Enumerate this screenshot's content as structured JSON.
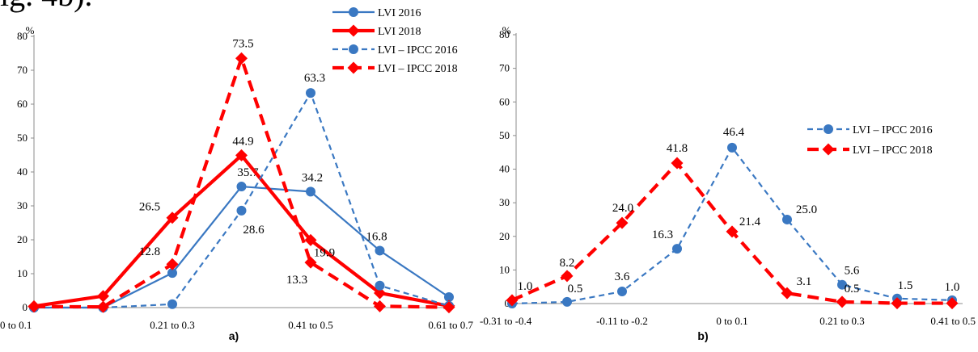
{
  "page": {
    "top_text": "ig. 4b)."
  },
  "chart_data": [
    {
      "type": "line",
      "panel_label": "a)",
      "ylabel": "%",
      "ylim": [
        0,
        80
      ],
      "yticks": [
        0,
        10,
        20,
        30,
        40,
        50,
        60,
        70,
        80
      ],
      "x_labels": [
        "0 to 0.1",
        "",
        "0.21 to 0.3",
        "",
        "0.41 to 0.5",
        "",
        "0.61 to 0.7"
      ],
      "legend_position": "top-right",
      "series": [
        {
          "name": "LVI 2016",
          "style": "solid-thin",
          "marker": "circle",
          "color": "#3a78c2",
          "values": [
            0,
            0,
            10.2,
            35.7,
            34.2,
            16.8,
            3.1
          ],
          "labels": [
            "",
            "",
            "",
            "35.7",
            "34.2",
            "16.8",
            ""
          ]
        },
        {
          "name": "LVI 2018",
          "style": "solid-thick",
          "marker": "diamond",
          "color": "#ff0000",
          "values": [
            0.4,
            3.4,
            26.5,
            44.9,
            19.9,
            4.3,
            0.5
          ],
          "labels": [
            "",
            "",
            "26.5",
            "44.9",
            "19.9",
            "",
            ""
          ]
        },
        {
          "name": "LVI – IPCC 2016",
          "style": "dashed-thin",
          "marker": "circle",
          "color": "#3a78c2",
          "values": [
            0,
            0,
            1.0,
            28.6,
            63.3,
            6.5,
            0.5
          ],
          "labels": [
            "",
            "",
            "",
            "28.6",
            "63.3",
            "",
            ""
          ]
        },
        {
          "name": "LVI – IPCC 2018",
          "style": "dashed-thick",
          "marker": "diamond",
          "color": "#ff0000",
          "values": [
            0.3,
            0.2,
            12.8,
            73.5,
            13.3,
            0.4,
            0.1
          ],
          "labels": [
            "",
            "",
            "12.8",
            "73.5",
            "13.3",
            "",
            ""
          ]
        }
      ]
    },
    {
      "type": "line",
      "panel_label": "b)",
      "ylabel": "%",
      "ylim": [
        0,
        80
      ],
      "yticks": [
        0,
        10,
        20,
        30,
        40,
        50,
        60,
        70,
        80
      ],
      "x_labels": [
        "-0.31 to -0.4",
        "",
        "-0.11 to -0.2",
        "",
        "0 to 0.1",
        "",
        "0.21 to 0.3",
        "",
        "0.41 to 0.5"
      ],
      "legend_position": "right",
      "series": [
        {
          "name": "LVI – IPCC 2016",
          "style": "dashed-thin",
          "marker": "circle",
          "color": "#3a78c2",
          "values": [
            0,
            0.5,
            3.6,
            16.3,
            46.4,
            25.0,
            5.6,
            1.5,
            1.0
          ],
          "labels": [
            "",
            "0.5",
            "3.6",
            "16.3",
            "46.4",
            "25.0",
            "5.6",
            "1.5",
            "1.0"
          ]
        },
        {
          "name": "LVI – IPCC 2018",
          "style": "dashed-thick",
          "marker": "diamond",
          "color": "#ff0000",
          "values": [
            1.0,
            8.2,
            24.0,
            41.8,
            21.4,
            3.1,
            0.5,
            0.1,
            0.1
          ],
          "labels": [
            "1.0",
            "8.2",
            "24.0",
            "41.8",
            "21.4",
            "3.1",
            "0.5",
            "",
            ""
          ]
        }
      ]
    }
  ]
}
